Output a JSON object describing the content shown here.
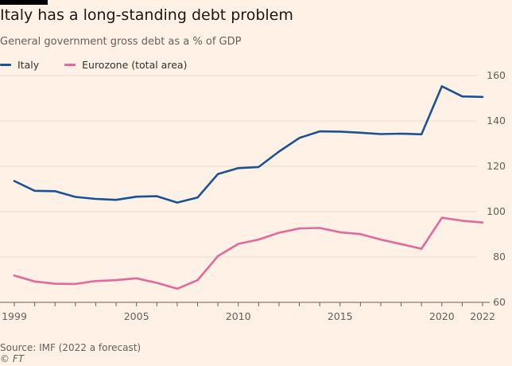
{
  "title": "Italy has a long-standing debt problem",
  "subtitle": "General government gross debt as a % of GDP",
  "source": "Source: IMF (2022 a forecast)",
  "credit": "© FT",
  "colors": {
    "background": "#fff1e5",
    "italy": "#1a5296",
    "eurozone": "#e5689c",
    "grid": "#e8dccf",
    "axis": "#66605c"
  },
  "chart_data": {
    "type": "line",
    "title": "Italy has a long-standing debt problem",
    "subtitle": "General government gross debt as a % of GDP",
    "xlabel": "",
    "ylabel": "",
    "xlim": [
      1999,
      2022
    ],
    "ylim": [
      60,
      160
    ],
    "x_ticks": [
      1999,
      2005,
      2010,
      2015,
      2020,
      2022
    ],
    "y_ticks": [
      60,
      80,
      100,
      120,
      140,
      160
    ],
    "y_axis_side": "right",
    "grid": "horizontal",
    "legend_position": "top-left",
    "x": [
      1999,
      2000,
      2001,
      2002,
      2003,
      2004,
      2005,
      2006,
      2007,
      2008,
      2009,
      2010,
      2011,
      2012,
      2013,
      2014,
      2015,
      2016,
      2017,
      2018,
      2019,
      2020,
      2021,
      2022
    ],
    "series": [
      {
        "name": "Italy",
        "color": "#1a5296",
        "values": [
          113.5,
          109.2,
          109.0,
          106.5,
          105.6,
          105.2,
          106.6,
          106.8,
          104.0,
          106.2,
          116.6,
          119.2,
          119.7,
          126.5,
          132.5,
          135.4,
          135.3,
          134.8,
          134.2,
          134.4,
          134.1,
          155.3,
          150.8,
          150.6
        ]
      },
      {
        "name": "Eurozone (total area)",
        "color": "#e5689c",
        "values": [
          71.8,
          69.2,
          68.2,
          68.1,
          69.4,
          69.8,
          70.6,
          68.6,
          66.0,
          69.8,
          80.4,
          85.8,
          87.7,
          90.7,
          92.6,
          92.8,
          90.9,
          90.1,
          87.7,
          85.7,
          83.6,
          97.3,
          96.0,
          95.2
        ]
      }
    ]
  }
}
